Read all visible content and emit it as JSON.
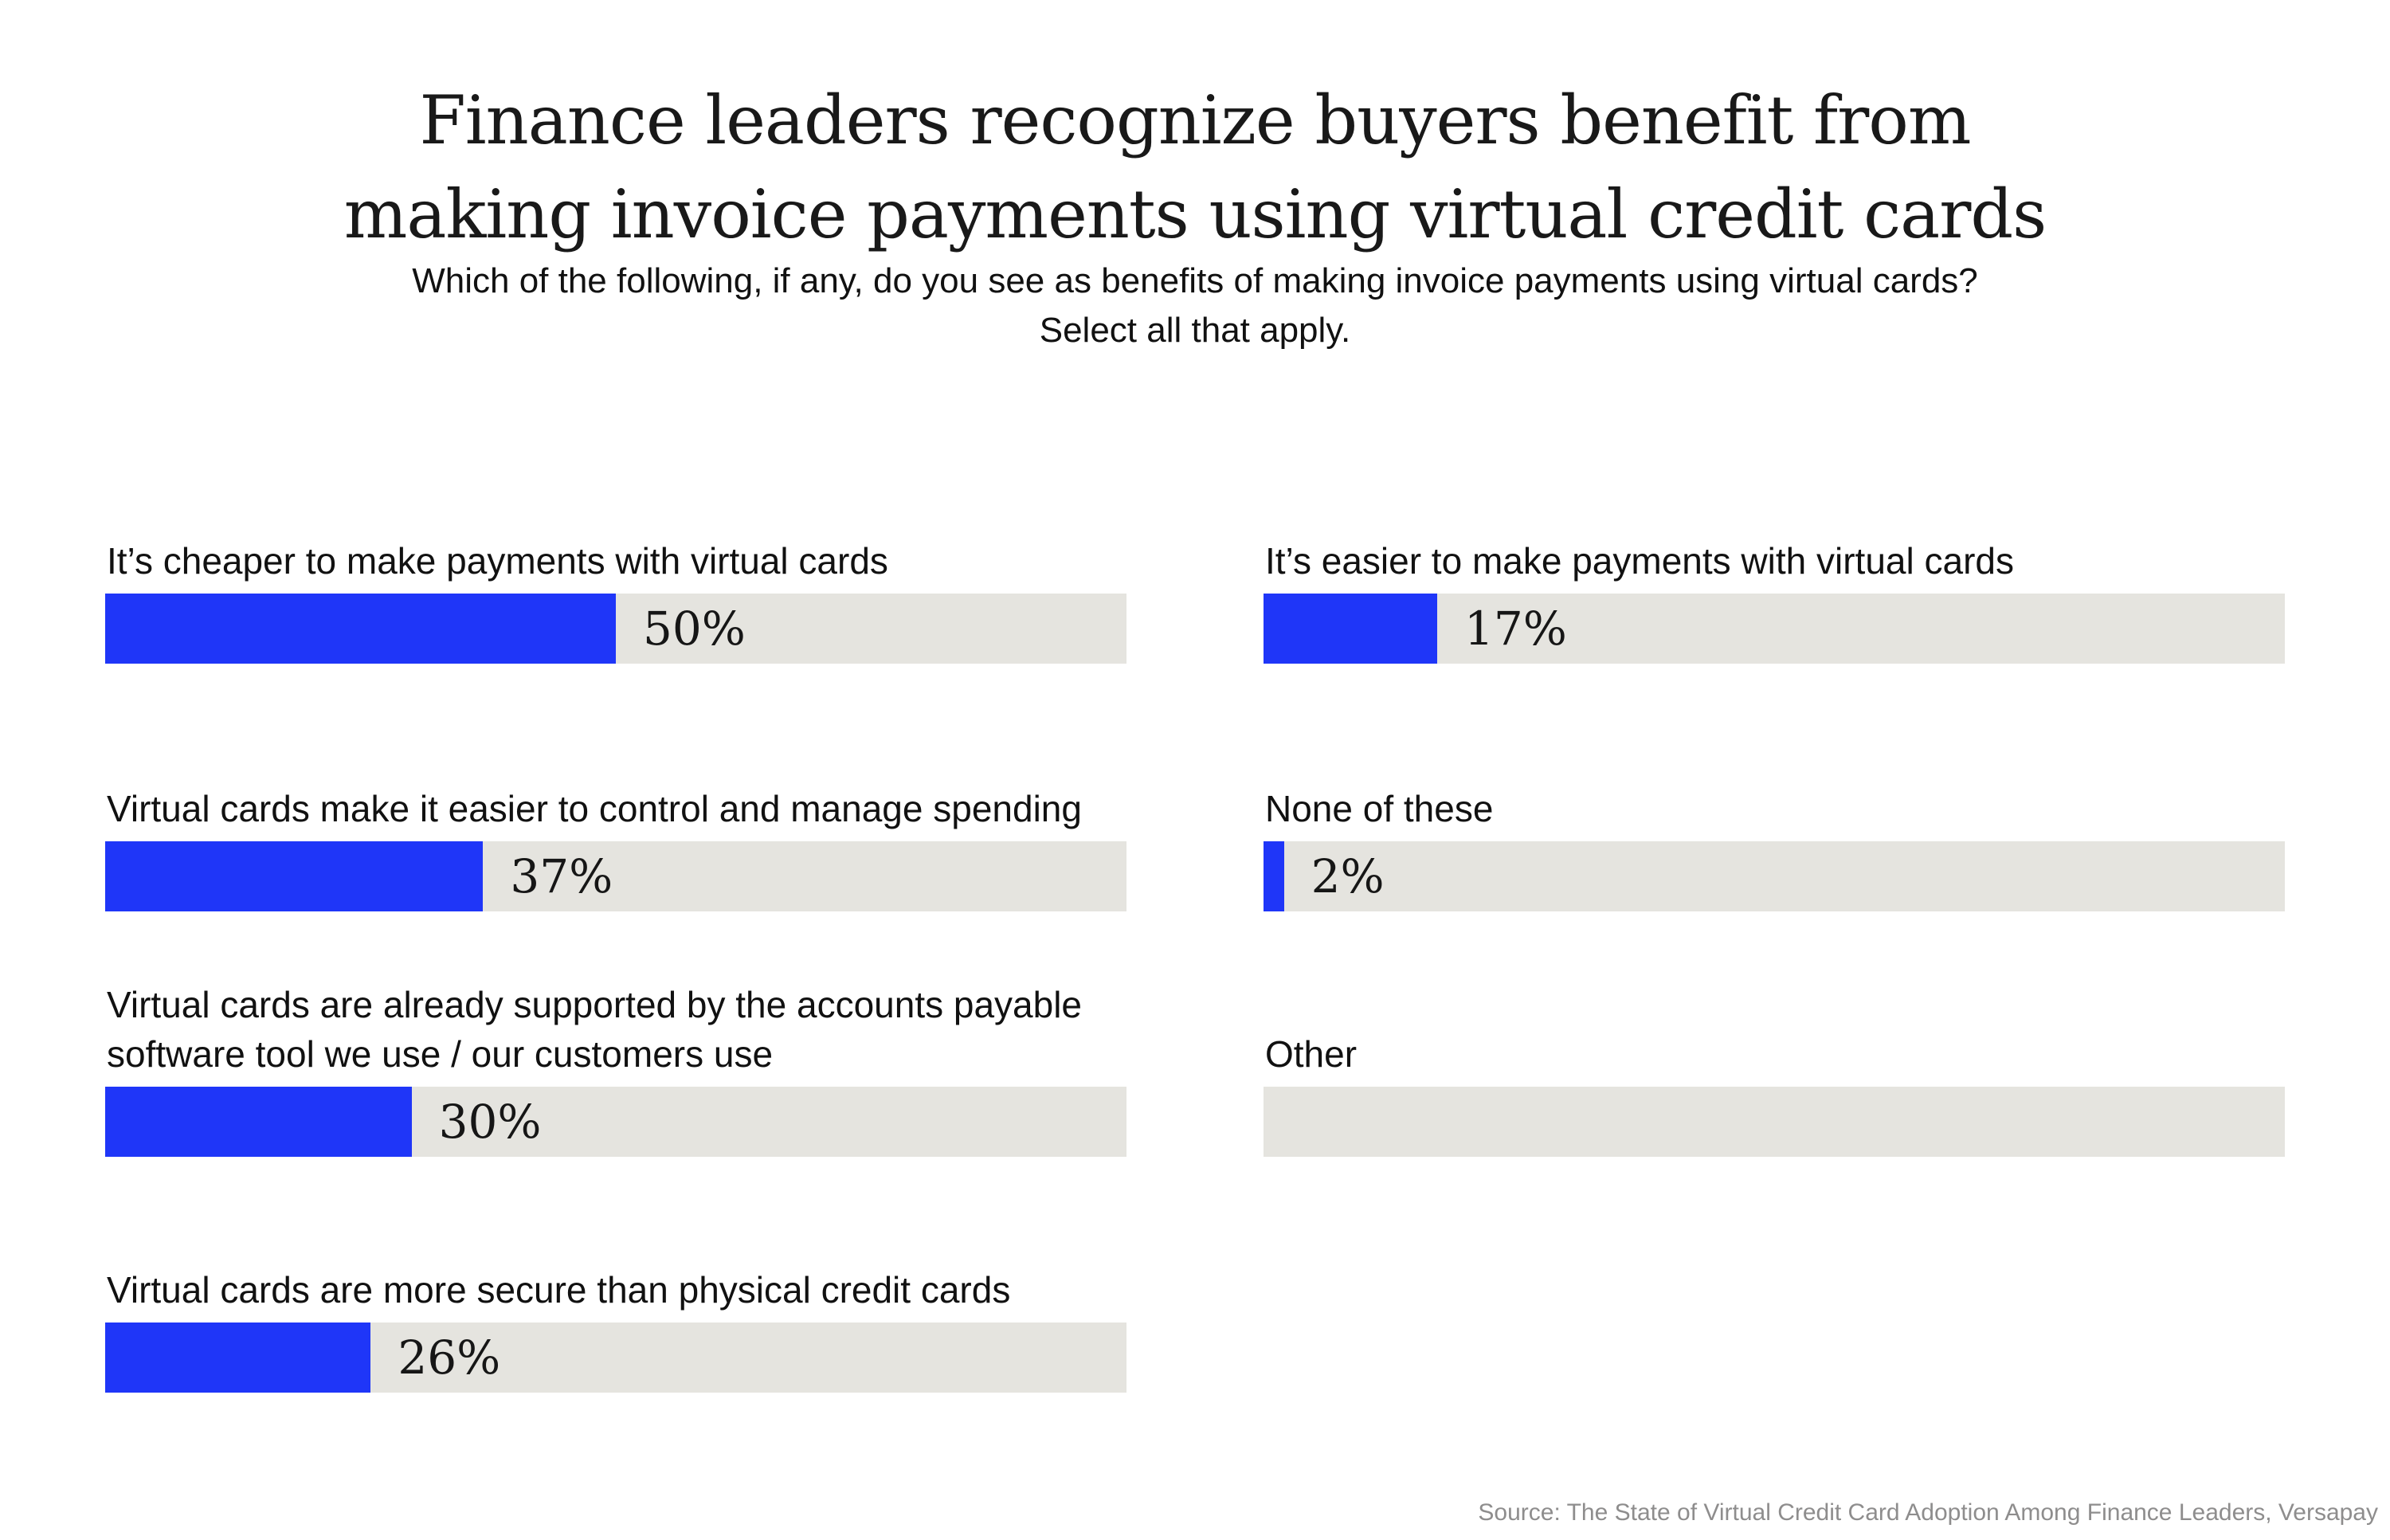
{
  "title": {
    "lines": [
      "Finance leaders recognize buyers benefit from",
      "making invoice payments using virtual credit cards"
    ]
  },
  "subtitle": {
    "lines": [
      "Which of the following, if any, do you see as benefits of making invoice payments using virtual cards?",
      "Select all that apply."
    ]
  },
  "source": "Source: The State of Virtual Credit Card Adoption Among Finance Leaders, Versapay",
  "colors": {
    "background": "#ffffff",
    "bar_fill": "#1f36f8",
    "bar_track": "#e5e4df",
    "title_text": "#191919",
    "body_text": "#111111",
    "source_text": "#8e8d8d"
  },
  "chart_data": {
    "type": "bar",
    "orientation": "horizontal",
    "value_unit": "%",
    "value_range": [
      0,
      100
    ],
    "grid": false,
    "legend": false,
    "columns": [
      {
        "items": [
          {
            "label": "It’s cheaper to make payments with virtual cards",
            "value": 50,
            "value_label": "50%"
          },
          {
            "label": "Virtual cards make it easier to control and manage spending",
            "value": 37,
            "value_label": "37%"
          },
          {
            "label": "Virtual cards are already supported by the accounts payable software tool we use / our customers use",
            "value": 30,
            "value_label": "30%"
          },
          {
            "label": "Virtual cards are more secure than physical credit cards",
            "value": 26,
            "value_label": "26%"
          }
        ]
      },
      {
        "items": [
          {
            "label": "It’s easier to make payments with virtual cards",
            "value": 17,
            "value_label": "17%"
          },
          {
            "label": "None of these",
            "value": 2,
            "value_label": "2%"
          },
          {
            "label": "Other",
            "value": 0,
            "value_label": ""
          }
        ]
      }
    ]
  }
}
